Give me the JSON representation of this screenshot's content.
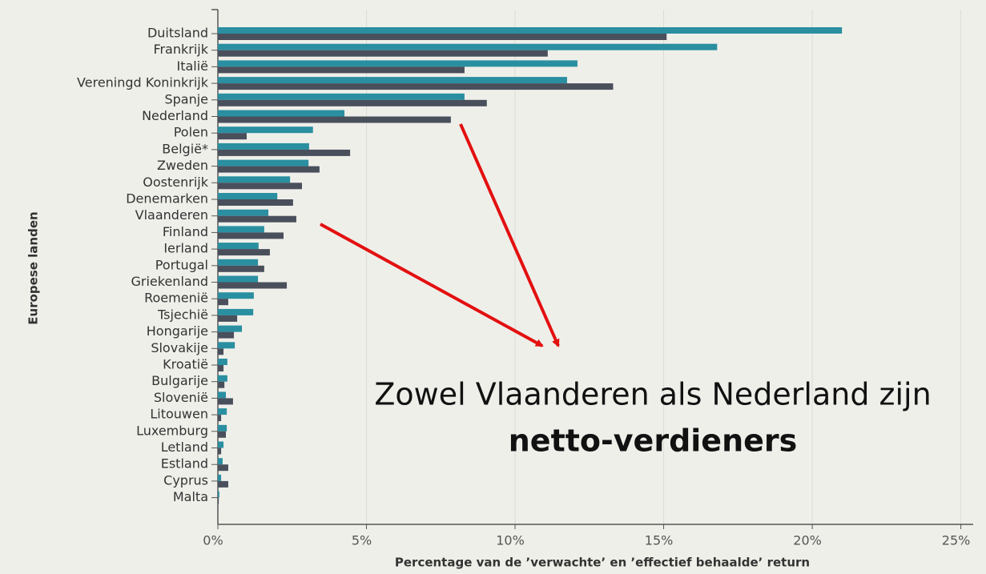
{
  "chart_data": {
    "type": "hbar",
    "xlabel": "Percentage van de ’verwachte’ en ’effectief behaalde’ return",
    "ylabel": "Europese landen",
    "annotation": [
      "Zowel Vlaanderen als Nederland zijn",
      "netto-verdieners"
    ],
    "categories": [
      "Duitsland",
      "Frankrijk",
      "Italië",
      "Vereningd Koninkrijk",
      "Spanje",
      "Nederland",
      "Polen",
      "België*",
      "Zweden",
      "Oostenrijk",
      "Denemarken",
      "Vlaanderen",
      "Finland",
      "Ierland",
      "Portugal",
      "Griekenland",
      "Roemenië",
      "Tsjechië",
      "Hongarije",
      "Slovakije",
      "Kroatië",
      "Bulgarije",
      "Slovenië",
      "Litouwen",
      "Luxemburg",
      "Letland",
      "Estland",
      "Cyprus",
      "Malta"
    ],
    "series": [
      {
        "color": "#2a8fa0",
        "values": [
          21.0,
          16.8,
          12.1,
          11.75,
          8.3,
          4.26,
          3.2,
          3.07,
          3.05,
          2.43,
          2.0,
          1.7,
          1.56,
          1.37,
          1.35,
          1.35,
          1.21,
          1.19,
          0.81,
          0.57,
          0.32,
          0.32,
          0.27,
          0.3,
          0.3,
          0.19,
          0.16,
          0.11,
          0.05
        ]
      },
      {
        "color": "#4a4f5c",
        "values": [
          15.1,
          11.1,
          8.3,
          13.3,
          9.05,
          7.84,
          0.97,
          4.45,
          3.42,
          2.83,
          2.53,
          2.64,
          2.21,
          1.75,
          1.56,
          2.32,
          0.35,
          0.65,
          0.54,
          0.19,
          0.19,
          0.22,
          0.51,
          0.11,
          0.27,
          0.11,
          0.35,
          0.35,
          0.03
        ]
      }
    ],
    "xlim": [
      0,
      25.2
    ],
    "xticks": [
      {
        "value": 0,
        "label": "0%"
      },
      {
        "value": 5,
        "label": "5%"
      },
      {
        "value": 10,
        "label": "10%"
      },
      {
        "value": 15,
        "label": "15%"
      },
      {
        "value": 20,
        "label": "20%"
      },
      {
        "value": 25,
        "label": "25%"
      }
    ],
    "grid": true
  }
}
